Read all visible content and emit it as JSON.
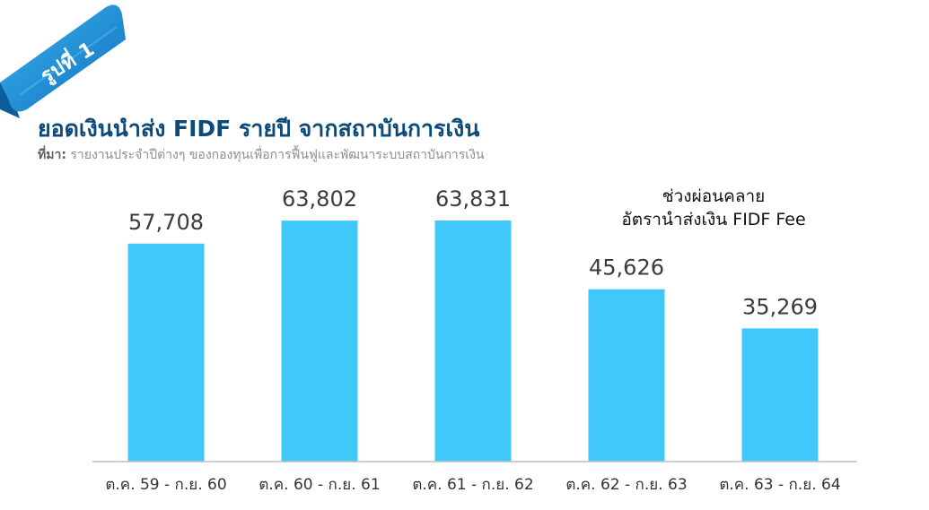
{
  "figure_label": "รูปที่ 1",
  "source_prefix": "ที่มา:",
  "source_text": " รายงานประจำปีต่างๆ ของกองทุนเพื่อการฟื้นฟูและพัฒนาระบบสถาบันการเงิน",
  "annotation": {
    "line1": "ช่วงผ่อนคลาย",
    "line2": "อัตรานำส่งเงิน FIDF Fee"
  },
  "colors": {
    "bar": "#40c8fb",
    "title": "#0d4a7a",
    "ribbon": "#1a8fd8",
    "axis": "#bfbfbf"
  },
  "chart_data": {
    "type": "bar",
    "title": "ยอดเงินนำส่ง FIDF รายปี จากสถาบันการเงิน",
    "categories": [
      "ต.ค. 59 - ก.ย. 60",
      "ต.ค. 60 - ก.ย. 61",
      "ต.ค. 61 - ก.ย. 62",
      "ต.ค. 62 - ก.ย. 63",
      "ต.ค. 63 - ก.ย. 64"
    ],
    "values": [
      57708,
      63802,
      63831,
      45626,
      35269
    ],
    "value_labels": [
      "57,708",
      "63,802",
      "63,831",
      "45,626",
      "35,269"
    ],
    "xlabel": "",
    "ylabel": "",
    "ylim": [
      0,
      63831
    ],
    "grid": false,
    "legend": "none"
  }
}
